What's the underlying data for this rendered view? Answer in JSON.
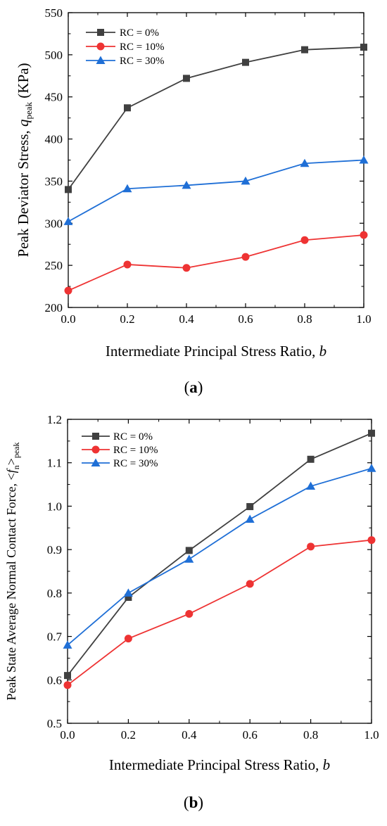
{
  "chart_data": [
    {
      "type": "line",
      "panel_label": "(a)",
      "panel_letter": "a",
      "xlabel": "Intermediate Principal Stress Ratio, b",
      "xlabel_text": "Intermediate Principal Stress Ratio, ",
      "xlabel_var": "b",
      "ylabel": "Peak Deviator Stress, q_peak (KPa)",
      "ylabel_text": "Peak Deviator Stress, ",
      "ylabel_var": "q",
      "ylabel_sub": "peak",
      "ylabel_unit": " (KPa)",
      "x": [
        0.0,
        0.2,
        0.4,
        0.6,
        0.8,
        1.0
      ],
      "xlim": [
        0.0,
        1.0
      ],
      "ylim": [
        200,
        550
      ],
      "xticks": [
        0.0,
        0.2,
        0.4,
        0.6,
        0.8,
        1.0
      ],
      "xtick_labels": [
        "0.0",
        "0.2",
        "0.4",
        "0.6",
        "0.8",
        "1.0"
      ],
      "yticks": [
        200,
        250,
        300,
        350,
        400,
        450,
        500,
        550
      ],
      "ytick_labels": [
        "200",
        "250",
        "300",
        "350",
        "400",
        "450",
        "500",
        "550"
      ],
      "grid": false,
      "legend_position": "top-left",
      "series": [
        {
          "name": "RC = 0%",
          "color": "#404040",
          "marker": "square",
          "values": [
            340,
            437,
            472,
            491,
            506,
            509
          ]
        },
        {
          "name": "RC = 10%",
          "color": "#ee3333",
          "marker": "circle",
          "values": [
            220,
            251,
            247,
            260,
            280,
            286
          ]
        },
        {
          "name": "RC = 30%",
          "color": "#1f6fd6",
          "marker": "triangle",
          "values": [
            302,
            341,
            345,
            350,
            371,
            375
          ]
        }
      ]
    },
    {
      "type": "line",
      "panel_label": "(b)",
      "panel_letter": "b",
      "xlabel": "Intermediate Principal Stress Ratio, b",
      "xlabel_text": "Intermediate Principal Stress Ratio, ",
      "xlabel_var": "b",
      "ylabel": "Peak State Average Normal Contact Force, <f_n>_peak",
      "ylabel_text": "Peak State Average Normal Contact Force, <",
      "ylabel_var": "f",
      "ylabel_sub1": "n",
      "ylabel_mid": ">",
      "ylabel_sub2": "peak",
      "x": [
        0.0,
        0.2,
        0.4,
        0.6,
        0.8,
        1.0
      ],
      "xlim": [
        0.0,
        1.0
      ],
      "ylim": [
        0.5,
        1.2
      ],
      "xticks": [
        0.0,
        0.2,
        0.4,
        0.6,
        0.8,
        1.0
      ],
      "xtick_labels": [
        "0.0",
        "0.2",
        "0.4",
        "0.6",
        "0.8",
        "1.0"
      ],
      "yticks": [
        0.5,
        0.6,
        0.7,
        0.8,
        0.9,
        1.0,
        1.1,
        1.2
      ],
      "ytick_labels": [
        "0.5",
        "0.6",
        "0.7",
        "0.8",
        "0.9",
        "1.0",
        "1.1",
        "1.2"
      ],
      "grid": false,
      "legend_position": "top-left",
      "series": [
        {
          "name": "RC = 0%",
          "color": "#404040",
          "marker": "square",
          "values": [
            0.61,
            0.79,
            0.898,
            0.999,
            1.108,
            1.168
          ]
        },
        {
          "name": "RC = 10%",
          "color": "#ee3333",
          "marker": "circle",
          "values": [
            0.588,
            0.695,
            0.752,
            0.821,
            0.907,
            0.922
          ]
        },
        {
          "name": "RC = 30%",
          "color": "#1f6fd6",
          "marker": "triangle",
          "values": [
            0.68,
            0.8,
            0.878,
            0.97,
            1.046,
            1.087
          ]
        }
      ]
    }
  ]
}
